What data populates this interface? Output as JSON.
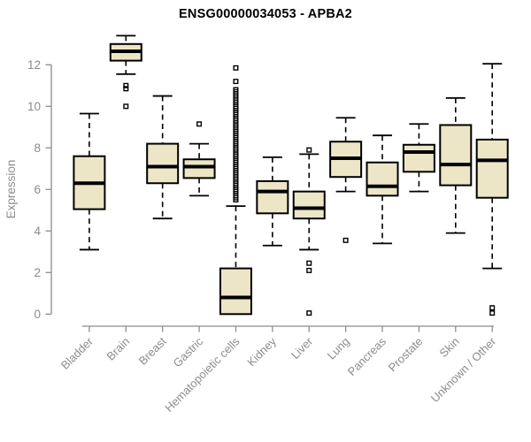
{
  "title": "ENSG00000034053 - APBA2",
  "colors": {
    "box_fill": "#ECE5C6",
    "box_border": "#000000",
    "median": "#000000",
    "whisker": "#000000",
    "outlier": "#000000",
    "axis": "#8C8C8C",
    "tick_label": "#8C8C8C",
    "axis_title": "#8C8C8C",
    "title_color": "#000000",
    "background": "#FFFFFF"
  },
  "chart_data": {
    "type": "boxplot",
    "title": "ENSG00000034053 - APBA2",
    "xlabel": "",
    "ylabel": "Expression",
    "ylim": [
      0,
      12
    ],
    "yticks": [
      0,
      2,
      4,
      6,
      8,
      10,
      12
    ],
    "grid": false,
    "legend": "none",
    "categories": [
      "Bladder",
      "Brain",
      "Breast",
      "Gastric",
      "Hematopoietic cells",
      "Kidney",
      "Liver",
      "Lung",
      "Pancreas",
      "Prostate",
      "Skin",
      "Unknown / Other"
    ],
    "boxes": [
      {
        "category": "Bladder",
        "whisker_low": 3.1,
        "q1": 5.05,
        "median": 6.3,
        "q3": 7.6,
        "whisker_high": 9.65,
        "outliers": []
      },
      {
        "category": "Brain",
        "whisker_low": 11.55,
        "q1": 12.2,
        "median": 12.65,
        "q3": 13.0,
        "whisker_high": 13.4,
        "outliers": [
          11.0,
          10.85,
          10.0
        ]
      },
      {
        "category": "Breast",
        "whisker_low": 4.6,
        "q1": 6.3,
        "median": 7.1,
        "q3": 8.2,
        "whisker_high": 10.5,
        "outliers": []
      },
      {
        "category": "Gastric",
        "whisker_low": 5.7,
        "q1": 6.55,
        "median": 7.1,
        "q3": 7.45,
        "whisker_high": 8.2,
        "outliers": [
          9.15
        ]
      },
      {
        "category": "Hematopoietic cells",
        "whisker_low": 0.0,
        "q1": 0.0,
        "median": 0.8,
        "q3": 2.2,
        "whisker_high": 5.2,
        "outliers": [
          5.5,
          5.6,
          5.7,
          5.8,
          5.9,
          6.0,
          6.1,
          6.2,
          6.3,
          6.4,
          6.5,
          6.6,
          6.7,
          6.8,
          6.9,
          7.0,
          7.1,
          7.2,
          7.3,
          7.4,
          7.5,
          7.6,
          7.7,
          7.8,
          7.9,
          8.0,
          8.1,
          8.2,
          8.3,
          8.4,
          8.5,
          8.6,
          8.7,
          8.8,
          8.9,
          9.0,
          9.1,
          9.2,
          9.3,
          9.4,
          9.5,
          9.6,
          9.7,
          9.8,
          9.9,
          10.0,
          10.1,
          10.2,
          10.3,
          10.4,
          10.5,
          10.6,
          10.7,
          10.8,
          11.2,
          11.85
        ]
      },
      {
        "category": "Kidney",
        "whisker_low": 3.3,
        "q1": 4.85,
        "median": 5.9,
        "q3": 6.4,
        "whisker_high": 7.55,
        "outliers": []
      },
      {
        "category": "Liver",
        "whisker_low": 3.1,
        "q1": 4.6,
        "median": 5.1,
        "q3": 5.9,
        "whisker_high": 7.7,
        "outliers": [
          7.9,
          2.45,
          2.1,
          0.05
        ]
      },
      {
        "category": "Lung",
        "whisker_low": 5.9,
        "q1": 6.6,
        "median": 7.5,
        "q3": 8.3,
        "whisker_high": 9.45,
        "outliers": [
          3.55
        ]
      },
      {
        "category": "Pancreas",
        "whisker_low": 3.4,
        "q1": 5.7,
        "median": 6.15,
        "q3": 7.3,
        "whisker_high": 8.6,
        "outliers": []
      },
      {
        "category": "Prostate",
        "whisker_low": 5.9,
        "q1": 6.85,
        "median": 7.8,
        "q3": 8.15,
        "whisker_high": 9.15,
        "outliers": []
      },
      {
        "category": "Skin",
        "whisker_low": 3.9,
        "q1": 6.2,
        "median": 7.2,
        "q3": 9.1,
        "whisker_high": 10.4,
        "outliers": []
      },
      {
        "category": "Unknown / Other",
        "whisker_low": 2.2,
        "q1": 5.6,
        "median": 7.4,
        "q3": 8.4,
        "whisker_high": 12.05,
        "outliers": [
          0.3,
          0.05
        ]
      }
    ]
  }
}
